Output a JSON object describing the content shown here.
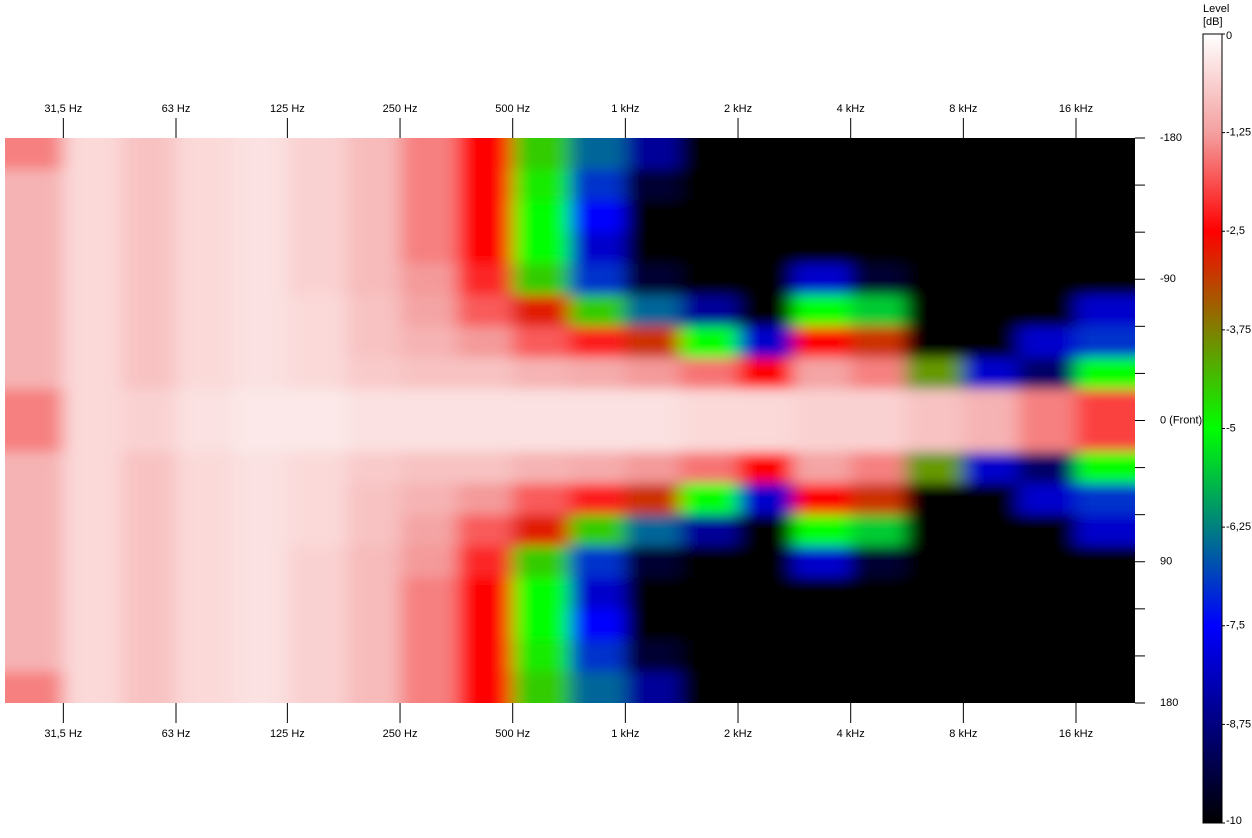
{
  "chart_data": {
    "type": "heatmap",
    "colorbar_title": "Level",
    "colorbar_unit": "[dB]",
    "xscale": "log",
    "xlim": [
      22,
      23000
    ],
    "xticks": [
      {
        "value": 31.5,
        "label": "31,5 Hz"
      },
      {
        "value": 63,
        "label": "63 Hz"
      },
      {
        "value": 125,
        "label": "125 Hz"
      },
      {
        "value": 250,
        "label": "250 Hz"
      },
      {
        "value": 500,
        "label": "500 Hz"
      },
      {
        "value": 1000,
        "label": "1 kHz"
      },
      {
        "value": 2000,
        "label": "2 kHz"
      },
      {
        "value": 4000,
        "label": "4 kHz"
      },
      {
        "value": 8000,
        "label": "8 kHz"
      },
      {
        "value": 16000,
        "label": "16 kHz"
      }
    ],
    "ylim": [
      -180,
      180
    ],
    "yticks": [
      -180,
      -90,
      {
        "value": 0,
        "label": "0 (Front)"
      },
      90,
      180
    ],
    "yminor_ticks": [
      -150,
      -120,
      -60,
      -30,
      30,
      60,
      120,
      150
    ],
    "clim": [
      0,
      -10
    ],
    "cticks": [
      0,
      {
        "value": -1.25,
        "label": "-1,25"
      },
      {
        "value": -2.5,
        "label": "-2,5"
      },
      {
        "value": -3.75,
        "label": "-3,75"
      },
      -5,
      {
        "value": -6.25,
        "label": "-6,25"
      },
      {
        "value": -7.5,
        "label": "-7,5"
      },
      {
        "value": -8.75,
        "label": "-8,75"
      },
      -10
    ],
    "colormap": [
      "#ffffff",
      "#f4a0a0",
      "#ff0000",
      "#808000",
      "#00ff00",
      "#008080",
      "#0000ff",
      "#000080",
      "#000000"
    ],
    "frequency_bins": [
      22,
      31.5,
      45,
      63,
      90,
      125,
      180,
      250,
      355,
      500,
      710,
      1000,
      1400,
      2000,
      2800,
      4000,
      5600,
      8000,
      11200,
      16000,
      23000
    ],
    "angle_bins": [
      -180,
      -160,
      -140,
      -120,
      -100,
      -80,
      -60,
      -40,
      -20,
      0,
      20,
      40,
      60,
      80,
      100,
      120,
      140,
      160,
      180
    ],
    "levels": [
      [
        -1.5,
        -0.5,
        -0.8,
        -0.5,
        -0.4,
        -0.6,
        -0.9,
        -1.5,
        -2.5,
        -4.5,
        -6.5,
        -8.5,
        -10,
        -10,
        -10,
        -10,
        -10,
        -10,
        -10,
        -10
      ],
      [
        -1,
        -0.5,
        -0.8,
        -0.5,
        -0.4,
        -0.6,
        -0.9,
        -1.5,
        -2.5,
        -4.8,
        -7,
        -9.5,
        -10,
        -10,
        -10,
        -10,
        -10,
        -10,
        -10,
        -10
      ],
      [
        -1,
        -0.5,
        -0.8,
        -0.5,
        -0.4,
        -0.6,
        -0.9,
        -1.5,
        -2.5,
        -5,
        -7.5,
        -10,
        -10,
        -10,
        -10,
        -10,
        -10,
        -10,
        -10,
        -10
      ],
      [
        -1,
        -0.5,
        -0.8,
        -0.5,
        -0.4,
        -0.6,
        -0.9,
        -1.5,
        -2.5,
        -5,
        -8,
        -10,
        -10,
        -10,
        -10,
        -10,
        -10,
        -10,
        -10,
        -10
      ],
      [
        -1,
        -0.5,
        -0.8,
        -0.5,
        -0.4,
        -0.6,
        -0.9,
        -1.3,
        -2.2,
        -4.5,
        -7,
        -9.5,
        -10,
        -10,
        -8,
        -9.5,
        -10,
        -10,
        -10,
        -10
      ],
      [
        -1,
        -0.5,
        -0.8,
        -0.5,
        -0.4,
        -0.5,
        -0.8,
        -1.2,
        -1.8,
        -2.8,
        -4.5,
        -6.5,
        -8.5,
        -10,
        -5,
        -5.5,
        -10,
        -10,
        -10,
        -8
      ],
      [
        -1,
        -0.5,
        -0.8,
        -0.5,
        -0.4,
        -0.5,
        -0.8,
        -1,
        -1.3,
        -1.8,
        -2.3,
        -3,
        -5,
        -8,
        -2.5,
        -3,
        -10,
        -10,
        -8,
        -7
      ],
      [
        -1,
        -0.5,
        -0.8,
        -0.5,
        -0.4,
        -0.5,
        -0.7,
        -0.8,
        -0.8,
        -1,
        -1.1,
        -1.3,
        -1.6,
        -2.5,
        -1.2,
        -1.5,
        -4,
        -8,
        -9,
        -5
      ],
      [
        -1.5,
        -0.5,
        -0.6,
        -0.4,
        -0.3,
        -0.3,
        -0.4,
        -0.4,
        -0.4,
        -0.4,
        -0.4,
        -0.4,
        -0.5,
        -0.5,
        -0.6,
        -0.6,
        -0.8,
        -1,
        -1.5,
        -2
      ],
      [
        -1.5,
        -0.5,
        -0.6,
        -0.4,
        -0.3,
        -0.3,
        -0.4,
        -0.4,
        -0.4,
        -0.4,
        -0.4,
        -0.4,
        -0.5,
        -0.5,
        -0.6,
        -0.6,
        -0.8,
        -1,
        -1.5,
        -2
      ],
      [
        -1,
        -0.5,
        -0.8,
        -0.5,
        -0.4,
        -0.5,
        -0.7,
        -0.8,
        -0.8,
        -1,
        -1.1,
        -1.3,
        -1.6,
        -2.5,
        -1.2,
        -1.5,
        -4,
        -8,
        -9,
        -5
      ],
      [
        -1,
        -0.5,
        -0.8,
        -0.5,
        -0.4,
        -0.5,
        -0.8,
        -1,
        -1.3,
        -1.8,
        -2.3,
        -3,
        -5,
        -8,
        -2.5,
        -3,
        -10,
        -10,
        -8,
        -7
      ],
      [
        -1,
        -0.5,
        -0.8,
        -0.5,
        -0.4,
        -0.5,
        -0.8,
        -1.2,
        -1.8,
        -2.8,
        -4.5,
        -6.5,
        -8.5,
        -10,
        -5,
        -5.5,
        -10,
        -10,
        -10,
        -8
      ],
      [
        -1,
        -0.5,
        -0.8,
        -0.5,
        -0.4,
        -0.6,
        -0.9,
        -1.3,
        -2.2,
        -4.5,
        -7,
        -9.5,
        -10,
        -10,
        -8,
        -9.5,
        -10,
        -10,
        -10,
        -10
      ],
      [
        -1,
        -0.5,
        -0.8,
        -0.5,
        -0.4,
        -0.6,
        -0.9,
        -1.5,
        -2.5,
        -5,
        -8,
        -10,
        -10,
        -10,
        -10,
        -10,
        -10,
        -10,
        -10,
        -10
      ],
      [
        -1,
        -0.5,
        -0.8,
        -0.5,
        -0.4,
        -0.6,
        -0.9,
        -1.5,
        -2.5,
        -5,
        -7.5,
        -10,
        -10,
        -10,
        -10,
        -10,
        -10,
        -10,
        -10,
        -10
      ],
      [
        -1,
        -0.5,
        -0.8,
        -0.5,
        -0.4,
        -0.6,
        -0.9,
        -1.5,
        -2.5,
        -4.8,
        -7,
        -9.5,
        -10,
        -10,
        -10,
        -10,
        -10,
        -10,
        -10,
        -10
      ],
      [
        -1.5,
        -0.5,
        -0.8,
        -0.5,
        -0.4,
        -0.6,
        -0.9,
        -1.5,
        -2.5,
        -4.5,
        -6.5,
        -8.5,
        -10,
        -10,
        -10,
        -10,
        -10,
        -10,
        -10,
        -10
      ]
    ]
  }
}
